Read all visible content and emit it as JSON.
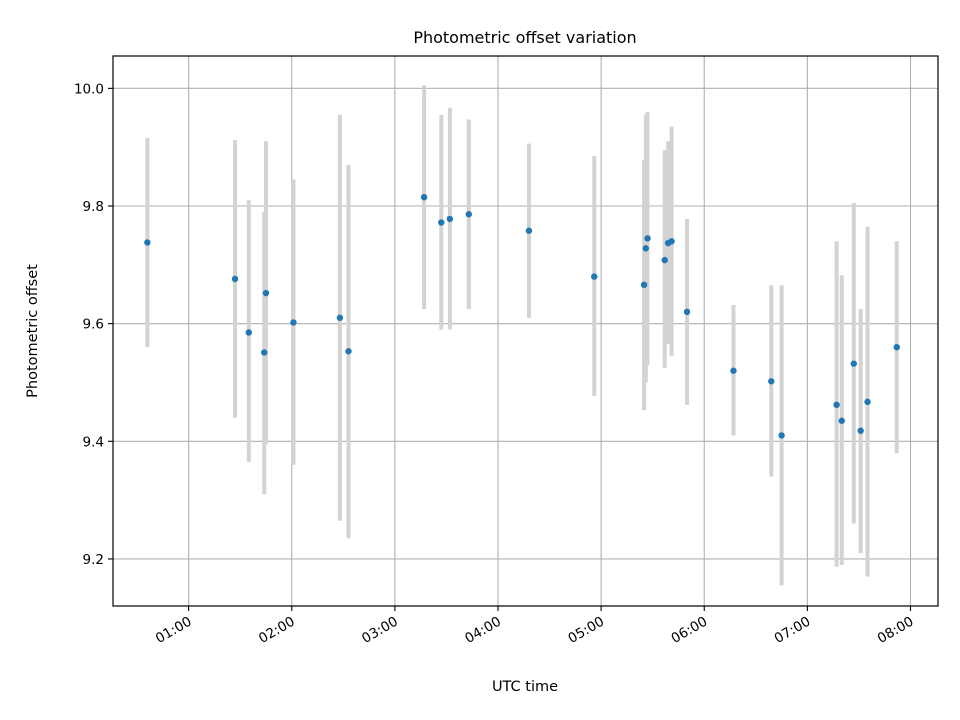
{
  "chart_data": {
    "type": "scatter",
    "title": "Photometric offset variation",
    "xlabel": "UTC time",
    "ylabel": "Photometric offset",
    "grid": true,
    "xlim": [
      "00:16",
      "08:16"
    ],
    "ylim": [
      9.12,
      10.055
    ],
    "xticks": [
      "01:00",
      "02:00",
      "03:00",
      "04:00",
      "05:00",
      "06:00",
      "07:00",
      "08:00"
    ],
    "yticks": [
      "9.2",
      "9.4",
      "9.6",
      "9.8",
      "10.0"
    ],
    "colors": {
      "point": "#1f77b4",
      "errorbar": "#d3d3d3",
      "grid": "#b0b0b0"
    },
    "points": [
      {
        "x": "00:36",
        "y": 9.738,
        "ymin": 9.56,
        "ymax": 9.916
      },
      {
        "x": "01:27",
        "y": 9.676,
        "ymin": 9.44,
        "ymax": 9.912
      },
      {
        "x": "01:35",
        "y": 9.585,
        "ymin": 9.365,
        "ymax": 9.81
      },
      {
        "x": "01:44",
        "y": 9.551,
        "ymin": 9.31,
        "ymax": 9.79
      },
      {
        "x": "01:45",
        "y": 9.652,
        "ymin": 9.395,
        "ymax": 9.91
      },
      {
        "x": "02:01",
        "y": 9.602,
        "ymin": 9.36,
        "ymax": 9.845
      },
      {
        "x": "02:28",
        "y": 9.61,
        "ymin": 9.265,
        "ymax": 9.955
      },
      {
        "x": "02:33",
        "y": 9.553,
        "ymin": 9.235,
        "ymax": 9.87
      },
      {
        "x": "03:17",
        "y": 9.815,
        "ymin": 9.625,
        "ymax": 10.005
      },
      {
        "x": "03:27",
        "y": 9.772,
        "ymin": 9.59,
        "ymax": 9.955
      },
      {
        "x": "03:32",
        "y": 9.778,
        "ymin": 9.59,
        "ymax": 9.967
      },
      {
        "x": "03:43",
        "y": 9.786,
        "ymin": 9.625,
        "ymax": 9.947
      },
      {
        "x": "04:18",
        "y": 9.758,
        "ymin": 9.61,
        "ymax": 9.906
      },
      {
        "x": "04:56",
        "y": 9.68,
        "ymin": 9.477,
        "ymax": 9.885
      },
      {
        "x": "05:25",
        "y": 9.666,
        "ymin": 9.453,
        "ymax": 9.878
      },
      {
        "x": "05:26",
        "y": 9.728,
        "ymin": 9.5,
        "ymax": 9.955
      },
      {
        "x": "05:27",
        "y": 9.745,
        "ymin": 9.53,
        "ymax": 9.96
      },
      {
        "x": "05:37",
        "y": 9.708,
        "ymin": 9.525,
        "ymax": 9.895
      },
      {
        "x": "05:39",
        "y": 9.737,
        "ymin": 9.565,
        "ymax": 9.91
      },
      {
        "x": "05:41",
        "y": 9.74,
        "ymin": 9.545,
        "ymax": 9.935
      },
      {
        "x": "05:50",
        "y": 9.62,
        "ymin": 9.462,
        "ymax": 9.778
      },
      {
        "x": "06:17",
        "y": 9.52,
        "ymin": 9.41,
        "ymax": 9.632
      },
      {
        "x": "06:39",
        "y": 9.502,
        "ymin": 9.34,
        "ymax": 9.665
      },
      {
        "x": "06:45",
        "y": 9.41,
        "ymin": 9.155,
        "ymax": 9.665
      },
      {
        "x": "07:17",
        "y": 9.462,
        "ymin": 9.187,
        "ymax": 9.74
      },
      {
        "x": "07:20",
        "y": 9.435,
        "ymin": 9.19,
        "ymax": 9.682
      },
      {
        "x": "07:27",
        "y": 9.532,
        "ymin": 9.26,
        "ymax": 9.805
      },
      {
        "x": "07:31",
        "y": 9.418,
        "ymin": 9.21,
        "ymax": 9.625
      },
      {
        "x": "07:35",
        "y": 9.467,
        "ymin": 9.17,
        "ymax": 9.765
      },
      {
        "x": "07:52",
        "y": 9.56,
        "ymin": 9.38,
        "ymax": 9.74
      }
    ]
  }
}
